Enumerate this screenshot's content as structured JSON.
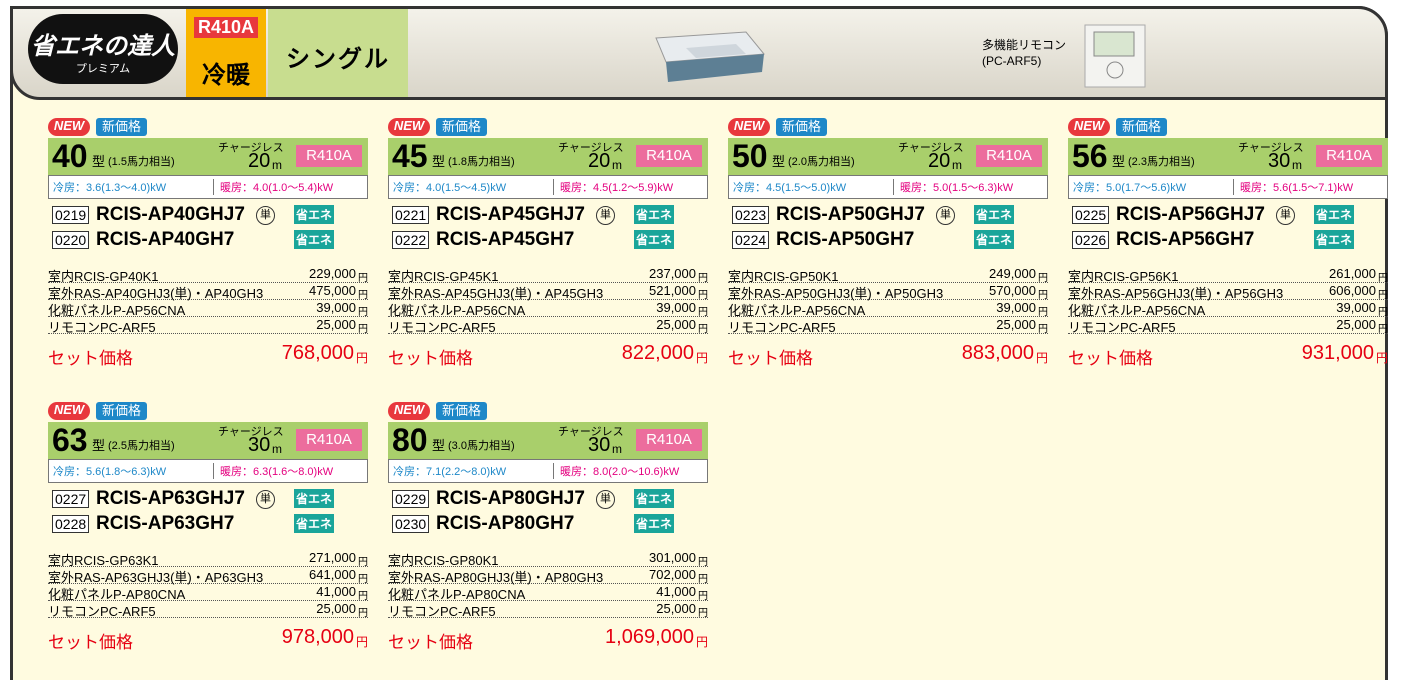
{
  "header": {
    "logo": "省エネの達人",
    "logo_sub": "プレミアム",
    "refrigerant": "R410A",
    "mode": "冷暖",
    "type": "シングル",
    "remote_label": "多機能リモコン",
    "remote_model": "(PC-ARF5)"
  },
  "products": [
    {
      "new": "NEW",
      "price_tag": "新価格",
      "size": "40",
      "unit": "型",
      "hp": "(1.5馬力相当)",
      "chargeless": "チャージレス",
      "pipe": "20",
      "pipe_unit": "m",
      "refrigerant": "R410A",
      "cooling": "冷房：3.6(1.3～4.0)kW",
      "heating": "暖房：4.0(1.0～5.4)kW",
      "models": [
        {
          "code": "0219",
          "name": "RCIS-AP40GHJ7",
          "single": "単",
          "badge": "省エネ"
        },
        {
          "code": "0220",
          "name": "RCIS-AP40GH7",
          "badge": "省エネ"
        }
      ],
      "parts": [
        {
          "name": "室内RCIS-GP40K1",
          "price": "229,000",
          "yen": "円"
        },
        {
          "name": "室外RAS-AP40GHJ3(単)・AP40GH3",
          "price": "475,000",
          "yen": "円"
        },
        {
          "name": "化粧パネルP-AP56CNA",
          "price": "39,000",
          "yen": "円"
        },
        {
          "name": "リモコンPC-ARF5",
          "price": "25,000",
          "yen": "円"
        }
      ],
      "set_label": "セット価格",
      "set_price": "768,000",
      "set_yen": "円"
    },
    {
      "new": "NEW",
      "price_tag": "新価格",
      "size": "45",
      "unit": "型",
      "hp": "(1.8馬力相当)",
      "chargeless": "チャージレス",
      "pipe": "20",
      "pipe_unit": "m",
      "refrigerant": "R410A",
      "cooling": "冷房：4.0(1.5～4.5)kW",
      "heating": "暖房：4.5(1.2～5.9)kW",
      "models": [
        {
          "code": "0221",
          "name": "RCIS-AP45GHJ7",
          "single": "単",
          "badge": "省エネ"
        },
        {
          "code": "0222",
          "name": "RCIS-AP45GH7",
          "badge": "省エネ"
        }
      ],
      "parts": [
        {
          "name": "室内RCIS-GP45K1",
          "price": "237,000",
          "yen": "円"
        },
        {
          "name": "室外RAS-AP45GHJ3(単)・AP45GH3",
          "price": "521,000",
          "yen": "円"
        },
        {
          "name": "化粧パネルP-AP56CNA",
          "price": "39,000",
          "yen": "円"
        },
        {
          "name": "リモコンPC-ARF5",
          "price": "25,000",
          "yen": "円"
        }
      ],
      "set_label": "セット価格",
      "set_price": "822,000",
      "set_yen": "円"
    },
    {
      "new": "NEW",
      "price_tag": "新価格",
      "size": "50",
      "unit": "型",
      "hp": "(2.0馬力相当)",
      "chargeless": "チャージレス",
      "pipe": "20",
      "pipe_unit": "m",
      "refrigerant": "R410A",
      "cooling": "冷房：4.5(1.5～5.0)kW",
      "heating": "暖房：5.0(1.5～6.3)kW",
      "models": [
        {
          "code": "0223",
          "name": "RCIS-AP50GHJ7",
          "single": "単",
          "badge": "省エネ"
        },
        {
          "code": "0224",
          "name": "RCIS-AP50GH7",
          "badge": "省エネ"
        }
      ],
      "parts": [
        {
          "name": "室内RCIS-GP50K1",
          "price": "249,000",
          "yen": "円"
        },
        {
          "name": "室外RAS-AP50GHJ3(単)・AP50GH3",
          "price": "570,000",
          "yen": "円"
        },
        {
          "name": "化粧パネルP-AP56CNA",
          "price": "39,000",
          "yen": "円"
        },
        {
          "name": "リモコンPC-ARF5",
          "price": "25,000",
          "yen": "円"
        }
      ],
      "set_label": "セット価格",
      "set_price": "883,000",
      "set_yen": "円"
    },
    {
      "new": "NEW",
      "price_tag": "新価格",
      "size": "56",
      "unit": "型",
      "hp": "(2.3馬力相当)",
      "chargeless": "チャージレス",
      "pipe": "30",
      "pipe_unit": "m",
      "refrigerant": "R410A",
      "cooling": "冷房：5.0(1.7～5.6)kW",
      "heating": "暖房：5.6(1.5～7.1)kW",
      "models": [
        {
          "code": "0225",
          "name": "RCIS-AP56GHJ7",
          "single": "単",
          "badge": "省エネ"
        },
        {
          "code": "0226",
          "name": "RCIS-AP56GH7",
          "badge": "省エネ"
        }
      ],
      "parts": [
        {
          "name": "室内RCIS-GP56K1",
          "price": "261,000",
          "yen": "円"
        },
        {
          "name": "室外RAS-AP56GHJ3(単)・AP56GH3",
          "price": "606,000",
          "yen": "円"
        },
        {
          "name": "化粧パネルP-AP56CNA",
          "price": "39,000",
          "yen": "円"
        },
        {
          "name": "リモコンPC-ARF5",
          "price": "25,000",
          "yen": "円"
        }
      ],
      "set_label": "セット価格",
      "set_price": "931,000",
      "set_yen": "円"
    },
    {
      "new": "NEW",
      "price_tag": "新価格",
      "size": "63",
      "unit": "型",
      "hp": "(2.5馬力相当)",
      "chargeless": "チャージレス",
      "pipe": "30",
      "pipe_unit": "m",
      "refrigerant": "R410A",
      "cooling": "冷房：5.6(1.8～6.3)kW",
      "heating": "暖房：6.3(1.6～8.0)kW",
      "models": [
        {
          "code": "0227",
          "name": "RCIS-AP63GHJ7",
          "single": "単",
          "badge": "省エネ"
        },
        {
          "code": "0228",
          "name": "RCIS-AP63GH7",
          "badge": "省エネ"
        }
      ],
      "parts": [
        {
          "name": "室内RCIS-GP63K1",
          "price": "271,000",
          "yen": "円"
        },
        {
          "name": "室外RAS-AP63GHJ3(単)・AP63GH3",
          "price": "641,000",
          "yen": "円"
        },
        {
          "name": "化粧パネルP-AP80CNA",
          "price": "41,000",
          "yen": "円"
        },
        {
          "name": "リモコンPC-ARF5",
          "price": "25,000",
          "yen": "円"
        }
      ],
      "set_label": "セット価格",
      "set_price": "978,000",
      "set_yen": "円"
    },
    {
      "new": "NEW",
      "price_tag": "新価格",
      "size": "80",
      "unit": "型",
      "hp": "(3.0馬力相当)",
      "chargeless": "チャージレス",
      "pipe": "30",
      "pipe_unit": "m",
      "refrigerant": "R410A",
      "cooling": "冷房：7.1(2.2～8.0)kW",
      "heating": "暖房：8.0(2.0～10.6)kW",
      "models": [
        {
          "code": "0229",
          "name": "RCIS-AP80GHJ7",
          "single": "単",
          "badge": "省エネ"
        },
        {
          "code": "0230",
          "name": "RCIS-AP80GH7",
          "badge": "省エネ"
        }
      ],
      "parts": [
        {
          "name": "室内RCIS-GP80K1",
          "price": "301,000",
          "yen": "円"
        },
        {
          "name": "室外RAS-AP80GHJ3(単)・AP80GH3",
          "price": "702,000",
          "yen": "円"
        },
        {
          "name": "化粧パネルP-AP80CNA",
          "price": "41,000",
          "yen": "円"
        },
        {
          "name": "リモコンPC-ARF5",
          "price": "25,000",
          "yen": "円"
        }
      ],
      "set_label": "セット価格",
      "set_price": "1,069,000",
      "set_yen": "円"
    }
  ]
}
